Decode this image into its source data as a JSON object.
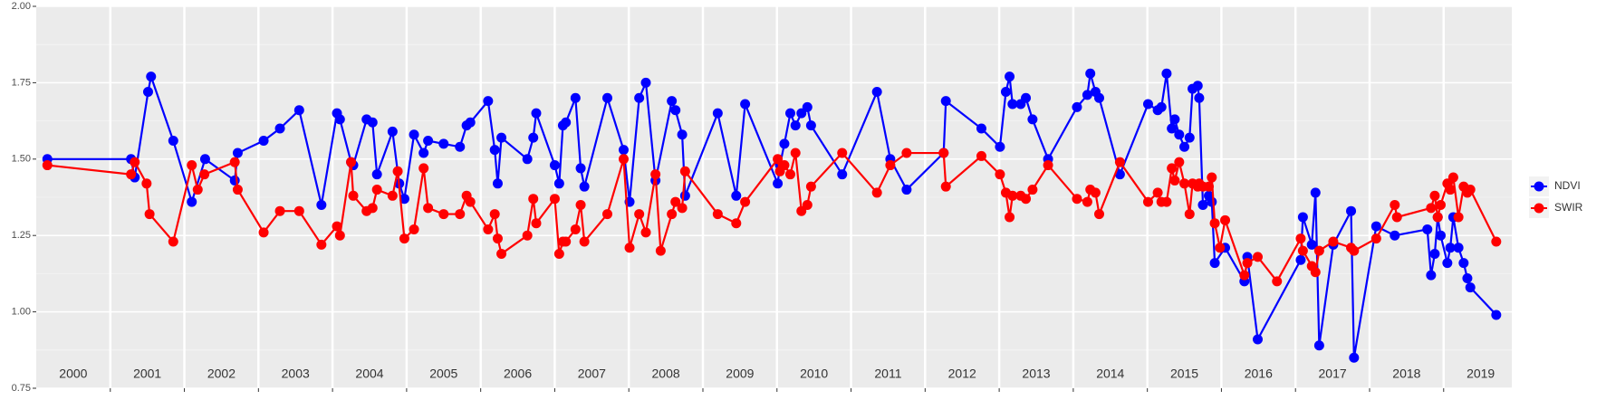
{
  "chart_data": {
    "type": "line",
    "xlim": [
      2000,
      2019.92
    ],
    "ylim": [
      0.75,
      2.0
    ],
    "yticks": [
      {
        "value": 0.75,
        "label": "0.75"
      },
      {
        "value": 1.0,
        "label": "1.00"
      },
      1.25,
      {
        "value": 1.5,
        "label": "1.50"
      },
      1.75,
      {
        "value": 2.0,
        "label": "2.00"
      }
    ],
    "xticks": [
      {
        "value": 2000.5,
        "label": "2000"
      },
      {
        "value": 2001.5,
        "label": "2001"
      },
      {
        "value": 2002.5,
        "label": "2002"
      },
      {
        "value": 2003.5,
        "label": "2003"
      },
      {
        "value": 2004.5,
        "label": "2004"
      },
      {
        "value": 2005.5,
        "label": "2005"
      },
      {
        "value": 2006.5,
        "label": "2006"
      },
      {
        "value": 2007.5,
        "label": "2007"
      },
      {
        "value": 2008.5,
        "label": "2008"
      },
      {
        "value": 2009.5,
        "label": "2009"
      },
      {
        "value": 2010.5,
        "label": "2010"
      },
      {
        "value": 2011.5,
        "label": "2011"
      },
      {
        "value": 2012.5,
        "label": "2012"
      },
      {
        "value": 2013.5,
        "label": "2013"
      },
      {
        "value": 2014.5,
        "label": "2014"
      },
      {
        "value": 2015.5,
        "label": "2015"
      },
      {
        "value": 2016.5,
        "label": "2016"
      },
      {
        "value": 2017.5,
        "label": "2017"
      },
      {
        "value": 2018.5,
        "label": "2018"
      },
      {
        "value": 2019.5,
        "label": "2019"
      }
    ],
    "grid": true,
    "legend": "right",
    "series": [
      {
        "name": "NDVI",
        "color": "#0000ff",
        "x": [
          2000.15,
          2001.28,
          2001.33,
          2001.51,
          2001.55,
          2001.85,
          2002.1,
          2002.28,
          2002.68,
          2002.72,
          2003.07,
          2003.29,
          2003.55,
          2003.85,
          2004.06,
          2004.1,
          2004.25,
          2004.28,
          2004.46,
          2004.54,
          2004.6,
          2004.81,
          2004.9,
          2004.97,
          2005.1,
          2005.23,
          2005.29,
          2005.5,
          2005.72,
          2005.81,
          2005.86,
          2006.1,
          2006.19,
          2006.23,
          2006.28,
          2006.63,
          2006.71,
          2006.75,
          2007.0,
          2007.06,
          2007.11,
          2007.15,
          2007.28,
          2007.35,
          2007.4,
          2007.71,
          2007.93,
          2008.01,
          2008.14,
          2008.23,
          2008.36,
          2008.58,
          2008.63,
          2008.72,
          2008.76,
          2009.2,
          2009.45,
          2009.57,
          2010.01,
          2010.04,
          2010.1,
          2010.18,
          2010.25,
          2010.33,
          2010.41,
          2010.46,
          2010.88,
          2011.35,
          2011.53,
          2011.75,
          2012.25,
          2012.28,
          2012.76,
          2013.01,
          2013.09,
          2013.14,
          2013.18,
          2013.29,
          2013.36,
          2013.45,
          2013.66,
          2014.05,
          2014.19,
          2014.23,
          2014.3,
          2014.35,
          2014.63,
          2015.01,
          2015.14,
          2015.19,
          2015.26,
          2015.33,
          2015.37,
          2015.43,
          2015.5,
          2015.57,
          2015.61,
          2015.68,
          2015.7,
          2015.75,
          2015.83,
          2015.87,
          2015.91,
          2016.05,
          2016.31,
          2016.35,
          2016.49,
          2017.07,
          2017.1,
          2017.22,
          2017.27,
          2017.32,
          2017.51,
          2017.75,
          2017.79,
          2018.09,
          2018.34,
          2018.78,
          2018.83,
          2018.88,
          2018.92,
          2018.96,
          2019.05,
          2019.09,
          2019.13,
          2019.2,
          2019.27,
          2019.32,
          2019.36,
          2019.71
        ],
        "values": [
          1.5,
          1.5,
          1.44,
          1.72,
          1.77,
          1.56,
          1.36,
          1.5,
          1.43,
          1.52,
          1.56,
          1.6,
          1.66,
          1.35,
          1.65,
          1.63,
          1.49,
          1.48,
          1.63,
          1.62,
          1.45,
          1.59,
          1.42,
          1.37,
          1.58,
          1.52,
          1.56,
          1.55,
          1.54,
          1.61,
          1.62,
          1.69,
          1.53,
          1.42,
          1.57,
          1.5,
          1.57,
          1.65,
          1.48,
          1.42,
          1.61,
          1.62,
          1.7,
          1.47,
          1.41,
          1.7,
          1.53,
          1.36,
          1.7,
          1.75,
          1.43,
          1.69,
          1.66,
          1.58,
          1.38,
          1.65,
          1.38,
          1.68,
          1.42,
          1.48,
          1.55,
          1.65,
          1.61,
          1.65,
          1.67,
          1.61,
          1.45,
          1.72,
          1.5,
          1.4,
          1.52,
          1.69,
          1.6,
          1.54,
          1.72,
          1.77,
          1.68,
          1.68,
          1.7,
          1.63,
          1.5,
          1.67,
          1.71,
          1.78,
          1.72,
          1.7,
          1.45,
          1.68,
          1.66,
          1.67,
          1.78,
          1.6,
          1.63,
          1.58,
          1.54,
          1.57,
          1.73,
          1.74,
          1.7,
          1.35,
          1.38,
          1.36,
          1.16,
          1.21,
          1.1,
          1.18,
          0.91,
          1.17,
          1.31,
          1.22,
          1.39,
          0.89,
          1.22,
          1.33,
          0.85,
          1.28,
          1.25,
          1.27,
          1.12,
          1.19,
          1.31,
          1.25,
          1.16,
          1.21,
          1.31,
          1.21,
          1.16,
          1.11,
          1.08,
          0.99
        ]
      },
      {
        "name": "SWIR",
        "color": "#ff0000",
        "x": [
          2000.15,
          2001.28,
          2001.33,
          2001.49,
          2001.53,
          2001.85,
          2002.1,
          2002.18,
          2002.27,
          2002.68,
          2002.72,
          2003.07,
          2003.29,
          2003.55,
          2003.85,
          2004.06,
          2004.1,
          2004.25,
          2004.28,
          2004.46,
          2004.54,
          2004.6,
          2004.81,
          2004.88,
          2004.97,
          2005.1,
          2005.23,
          2005.29,
          2005.5,
          2005.72,
          2005.81,
          2005.86,
          2006.1,
          2006.19,
          2006.23,
          2006.28,
          2006.63,
          2006.71,
          2006.75,
          2007.0,
          2007.06,
          2007.11,
          2007.15,
          2007.28,
          2007.35,
          2007.4,
          2007.71,
          2007.93,
          2008.01,
          2008.14,
          2008.23,
          2008.36,
          2008.43,
          2008.58,
          2008.63,
          2008.72,
          2008.76,
          2009.2,
          2009.45,
          2009.57,
          2010.01,
          2010.04,
          2010.1,
          2010.18,
          2010.25,
          2010.33,
          2010.41,
          2010.46,
          2010.88,
          2011.35,
          2011.53,
          2011.75,
          2012.25,
          2012.28,
          2012.76,
          2013.01,
          2013.09,
          2013.14,
          2013.18,
          2013.29,
          2013.36,
          2013.45,
          2013.66,
          2014.05,
          2014.19,
          2014.23,
          2014.3,
          2014.35,
          2014.63,
          2015.01,
          2015.14,
          2015.19,
          2015.26,
          2015.33,
          2015.37,
          2015.43,
          2015.5,
          2015.57,
          2015.61,
          2015.68,
          2015.7,
          2015.75,
          2015.83,
          2015.87,
          2015.91,
          2015.98,
          2016.05,
          2016.31,
          2016.35,
          2016.49,
          2016.75,
          2017.07,
          2017.1,
          2017.22,
          2017.27,
          2017.32,
          2017.51,
          2017.75,
          2017.79,
          2018.09,
          2018.34,
          2018.37,
          2018.83,
          2018.88,
          2018.92,
          2018.96,
          2019.05,
          2019.09,
          2019.13,
          2019.2,
          2019.27,
          2019.32,
          2019.36,
          2019.71
        ],
        "values": [
          1.48,
          1.45,
          1.49,
          1.42,
          1.32,
          1.23,
          1.48,
          1.4,
          1.45,
          1.49,
          1.4,
          1.26,
          1.33,
          1.33,
          1.22,
          1.28,
          1.25,
          1.49,
          1.38,
          1.33,
          1.34,
          1.4,
          1.38,
          1.46,
          1.24,
          1.27,
          1.47,
          1.34,
          1.32,
          1.32,
          1.38,
          1.36,
          1.27,
          1.32,
          1.24,
          1.19,
          1.25,
          1.37,
          1.29,
          1.37,
          1.19,
          1.23,
          1.23,
          1.27,
          1.35,
          1.23,
          1.32,
          1.5,
          1.21,
          1.32,
          1.26,
          1.45,
          1.2,
          1.32,
          1.36,
          1.34,
          1.46,
          1.32,
          1.29,
          1.36,
          1.5,
          1.46,
          1.48,
          1.45,
          1.52,
          1.33,
          1.35,
          1.41,
          1.52,
          1.39,
          1.48,
          1.52,
          1.52,
          1.41,
          1.51,
          1.45,
          1.39,
          1.31,
          1.38,
          1.38,
          1.37,
          1.4,
          1.48,
          1.37,
          1.36,
          1.4,
          1.39,
          1.32,
          1.49,
          1.36,
          1.39,
          1.36,
          1.36,
          1.47,
          1.43,
          1.49,
          1.42,
          1.32,
          1.42,
          1.41,
          1.42,
          1.41,
          1.41,
          1.44,
          1.29,
          1.21,
          1.3,
          1.12,
          1.16,
          1.18,
          1.1,
          1.24,
          1.2,
          1.15,
          1.13,
          1.2,
          1.23,
          1.21,
          1.2,
          1.24,
          1.35,
          1.31,
          1.34,
          1.38,
          1.31,
          1.35,
          1.42,
          1.4,
          1.44,
          1.31,
          1.41,
          1.39,
          1.4,
          1.23
        ]
      }
    ]
  }
}
